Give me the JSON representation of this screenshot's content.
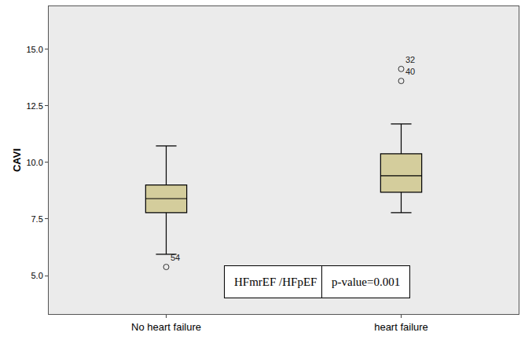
{
  "chart_data": {
    "type": "box",
    "y_label": "CAVI",
    "categories": [
      "No heart failure",
      "heart failure"
    ],
    "boxes": [
      {
        "min": 5.94,
        "q1": 7.78,
        "median": 8.4,
        "q3": 9.0,
        "max": 10.73,
        "outliers": [
          {
            "value": 5.38,
            "label": "54"
          }
        ]
      },
      {
        "min": 7.78,
        "q1": 8.68,
        "median": 9.41,
        "q3": 10.38,
        "max": 11.7,
        "outliers": [
          {
            "value": 14.13,
            "label": "32"
          },
          {
            "value": 13.6,
            "label": "40"
          }
        ]
      }
    ],
    "color": "#d4cd9c",
    "ylim": [
      3.3,
      16.9
    ],
    "yticks": [
      {
        "value": 5,
        "label": "5.0"
      },
      7.5,
      {
        "value": 10,
        "label": "10.0"
      },
      {
        "value": 12.5,
        "label": "12.5"
      },
      {
        "value": 15,
        "label": "15.0"
      }
    ],
    "grid": false,
    "annotations": [
      "HFmrEF /HFpEF",
      "p-value=0.001"
    ]
  }
}
